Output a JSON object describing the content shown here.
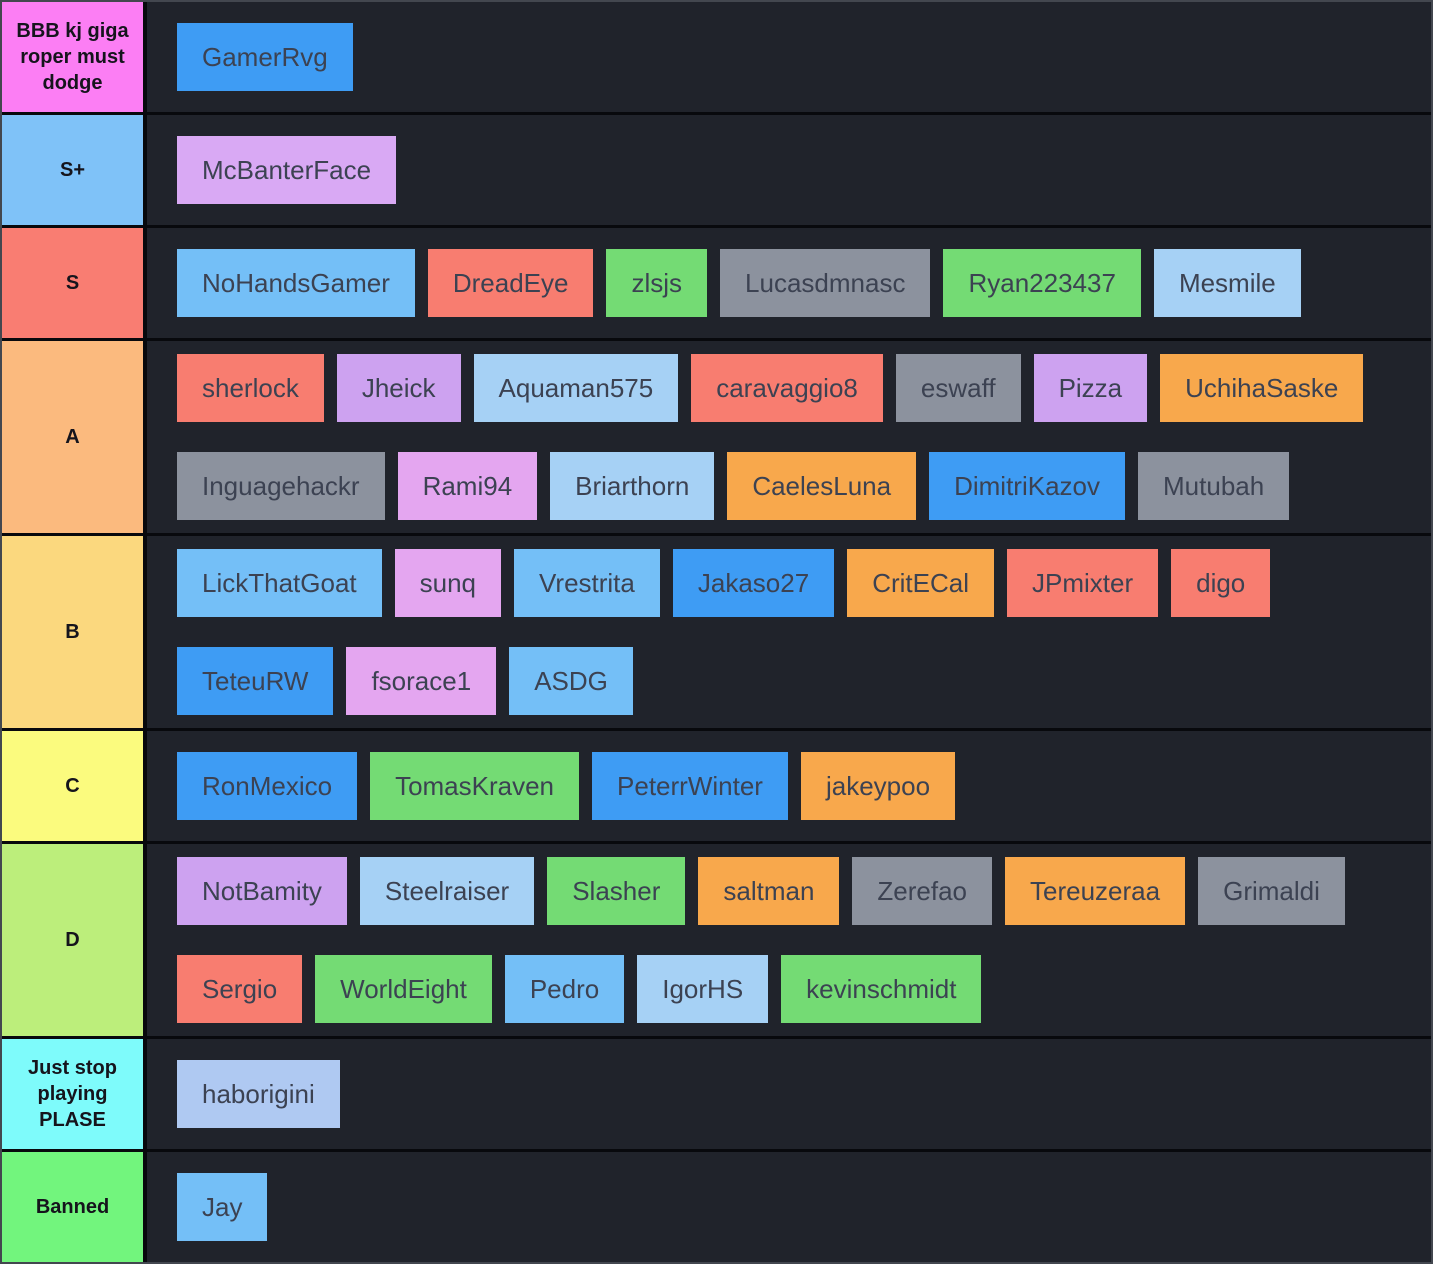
{
  "board": {
    "background": "#08090d",
    "row_background": "#20232b",
    "border_color": "#43474f"
  },
  "palette": {
    "blue": "#3E9CF4",
    "skyblue": "#74BFF7",
    "lightblue": "#A6D1F5",
    "periwinkle": "#AFC9F2",
    "lilac": "#D9A9F4",
    "purple": "#CDA2F0",
    "pinkpurple": "#E4A6F0",
    "salmon": "#F87D70",
    "orange": "#F8A84C",
    "green": "#74DB74",
    "gray": "#8C929E"
  },
  "tiers": [
    {
      "label": "BBB kj giga roper must dodge",
      "color": "#FC7EF4",
      "lines": [
        [
          {
            "name": "GamerRvg",
            "color": "blue"
          }
        ]
      ]
    },
    {
      "label": "S+",
      "color": "#7FC2F8",
      "lines": [
        [
          {
            "name": "McBanterFace",
            "color": "lilac"
          }
        ]
      ]
    },
    {
      "label": "S",
      "color": "#F97D72",
      "lines": [
        [
          {
            "name": "NoHandsGamer",
            "color": "skyblue"
          },
          {
            "name": "DreadEye",
            "color": "salmon"
          },
          {
            "name": "zlsjs",
            "color": "green"
          },
          {
            "name": "Lucasdmnasc",
            "color": "gray"
          },
          {
            "name": "Ryan223437",
            "color": "green"
          },
          {
            "name": "Mesmile",
            "color": "lightblue"
          }
        ]
      ]
    },
    {
      "label": "A",
      "color": "#FBBA7E",
      "lines": [
        [
          {
            "name": "sherlock",
            "color": "salmon"
          },
          {
            "name": "Jheick",
            "color": "purple"
          },
          {
            "name": "Aquaman575",
            "color": "lightblue"
          },
          {
            "name": "caravaggio8",
            "color": "salmon"
          },
          {
            "name": "eswaff",
            "color": "gray"
          },
          {
            "name": "Pizza",
            "color": "purple"
          },
          {
            "name": "UchihaSaske",
            "color": "orange"
          }
        ],
        [
          {
            "name": "Inguagehackr",
            "color": "gray"
          },
          {
            "name": "Rami94",
            "color": "pinkpurple"
          },
          {
            "name": "Briarthorn",
            "color": "lightblue"
          },
          {
            "name": "CaelesLuna",
            "color": "orange"
          },
          {
            "name": "DimitriKazov",
            "color": "blue"
          },
          {
            "name": "Mutubah",
            "color": "gray"
          }
        ]
      ]
    },
    {
      "label": "B",
      "color": "#FBD87E",
      "lines": [
        [
          {
            "name": "LickThatGoat",
            "color": "skyblue"
          },
          {
            "name": "sunq",
            "color": "pinkpurple"
          },
          {
            "name": "Vrestrita",
            "color": "skyblue"
          },
          {
            "name": "Jakaso27",
            "color": "blue"
          },
          {
            "name": "CritECal",
            "color": "orange"
          },
          {
            "name": "JPmixter",
            "color": "salmon"
          },
          {
            "name": "digo",
            "color": "salmon"
          }
        ],
        [
          {
            "name": "TeteuRW",
            "color": "blue"
          },
          {
            "name": "fsorace1",
            "color": "pinkpurple"
          },
          {
            "name": "ASDG",
            "color": "skyblue"
          }
        ]
      ]
    },
    {
      "label": "C",
      "color": "#FBFB7E",
      "lines": [
        [
          {
            "name": "RonMexico",
            "color": "blue"
          },
          {
            "name": "TomasKraven",
            "color": "green"
          },
          {
            "name": "PeterrWinter",
            "color": "blue"
          },
          {
            "name": "jakeypoo",
            "color": "orange"
          }
        ]
      ]
    },
    {
      "label": "D",
      "color": "#BCEE7B",
      "lines": [
        [
          {
            "name": "NotBamity",
            "color": "purple"
          },
          {
            "name": "Steelraiser",
            "color": "lightblue"
          },
          {
            "name": "Slasher",
            "color": "green"
          },
          {
            "name": "saltman",
            "color": "orange"
          },
          {
            "name": "Zerefao",
            "color": "gray"
          },
          {
            "name": "Tereuzeraa",
            "color": "orange"
          },
          {
            "name": "Grimaldi",
            "color": "gray"
          }
        ],
        [
          {
            "name": "Sergio",
            "color": "salmon"
          },
          {
            "name": "WorldEight",
            "color": "green"
          },
          {
            "name": "Pedro",
            "color": "skyblue"
          },
          {
            "name": "IgorHS",
            "color": "lightblue"
          },
          {
            "name": "kevinschmidt",
            "color": "green"
          }
        ]
      ]
    },
    {
      "label": "Just stop playing PLASE",
      "color": "#7EFBFB",
      "lines": [
        [
          {
            "name": "haborigini",
            "color": "periwinkle"
          }
        ]
      ]
    },
    {
      "label": "Banned",
      "color": "#72F57D",
      "lines": [
        [
          {
            "name": "Jay",
            "color": "skyblue"
          }
        ]
      ]
    }
  ]
}
